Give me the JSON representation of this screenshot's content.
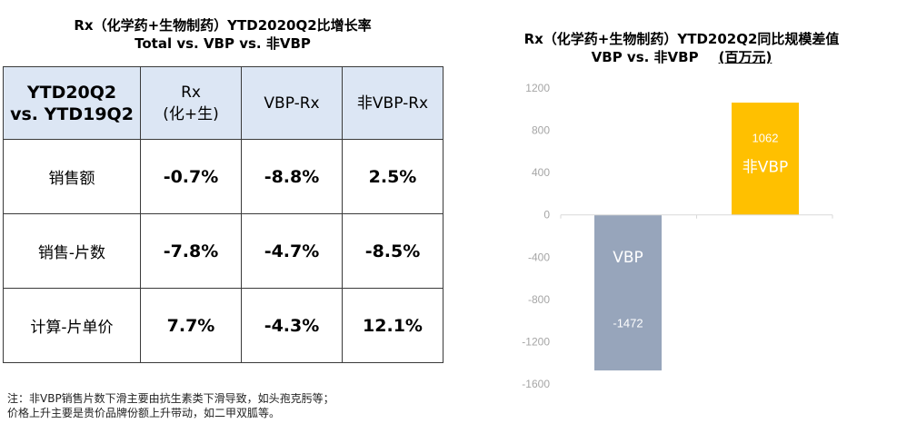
{
  "left": {
    "title_line1": "Rx（化学药+生物制药）YTD2020Q2比增长率",
    "title_line2": "Total vs. VBP vs. 非VBP",
    "table": {
      "corner": [
        "YTD20Q2",
        "vs. YTD19Q2"
      ],
      "headers": [
        [
          "Rx",
          "(化+生)"
        ],
        [
          "VBP-Rx"
        ],
        [
          "非VBP-Rx"
        ]
      ],
      "rows": [
        {
          "label": "销售额",
          "values": [
            "-0.7%",
            "-8.8%",
            "2.5%"
          ]
        },
        {
          "label": "销售-片数",
          "values": [
            "-7.8%",
            "-4.7%",
            "-8.5%"
          ]
        },
        {
          "label": "计算-片单价",
          "values": [
            "7.7%",
            "-4.3%",
            "12.1%"
          ]
        }
      ]
    },
    "footnote_line1": "注：非VBP销售片数下滑主要由抗生素类下滑导致，如头孢克肟等；",
    "footnote_line2": "价格上升主要是贵价品牌份额上升带动，如二甲双胍等。"
  },
  "chart_data": {
    "type": "bar",
    "title_line1": "Rx（化学药+生物制药）YTD202Q2同比规模差值",
    "title_line2": "VBP vs. 非VBP",
    "unit_label": "(百万元)",
    "categories": [
      "VBP",
      "非VBP"
    ],
    "values": [
      -1472,
      1062
    ],
    "data_labels": [
      "-1472",
      "1062"
    ],
    "colors": [
      "#97a5bb",
      "#ffc000"
    ],
    "ylim": [
      -1600,
      1200
    ],
    "yticks": [
      1200,
      800,
      400,
      0,
      -400,
      -800,
      -1200,
      -1600
    ],
    "ytick_labels": [
      "1200",
      "800",
      "400",
      "0",
      "-400",
      "-800",
      "-1200",
      "-1600"
    ],
    "grid": false,
    "legend": "none"
  }
}
